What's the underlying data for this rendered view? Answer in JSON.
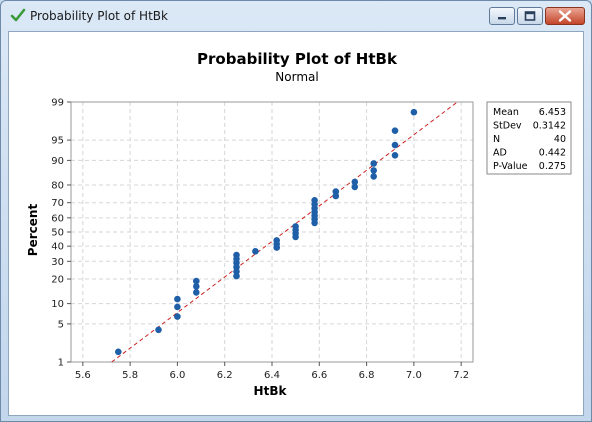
{
  "window": {
    "title": "Probability Plot of HtBk",
    "app_icon": "checkmark-icon",
    "controls": [
      "minimize-icon",
      "maximize-icon",
      "close-icon"
    ]
  },
  "chart_data": {
    "type": "scatter",
    "title": "Probability Plot of HtBk",
    "subtitle": "Normal",
    "xlabel": "HtBk",
    "ylabel": "Percent",
    "xlim": [
      5.55,
      7.25
    ],
    "ylim": [
      1,
      99
    ],
    "y_scale": "normal-probability",
    "x_ticks": [
      "5.6",
      "5.8",
      "6.0",
      "6.2",
      "6.4",
      "6.6",
      "6.8",
      "7.0",
      "7.2"
    ],
    "y_ticks": [
      "1",
      "5",
      "10",
      "20",
      "30",
      "40",
      "50",
      "60",
      "70",
      "80",
      "90",
      "95",
      "99"
    ],
    "grid": true,
    "series": [
      {
        "name": "",
        "color": "#1f5fa8",
        "points": [
          [
            5.75,
            1.6
          ],
          [
            5.92,
            4.0
          ],
          [
            6.0,
            6.5
          ],
          [
            6.0,
            9.0
          ],
          [
            6.0,
            11.5
          ],
          [
            6.08,
            14.0
          ],
          [
            6.08,
            16.5
          ],
          [
            6.08,
            19.0
          ],
          [
            6.25,
            21.5
          ],
          [
            6.25,
            24.0
          ],
          [
            6.25,
            26.5
          ],
          [
            6.25,
            29.0
          ],
          [
            6.25,
            31.5
          ],
          [
            6.25,
            34.0
          ],
          [
            6.33,
            36.5
          ],
          [
            6.42,
            39.0
          ],
          [
            6.42,
            41.5
          ],
          [
            6.42,
            44.0
          ],
          [
            6.5,
            46.5
          ],
          [
            6.5,
            49.0
          ],
          [
            6.5,
            51.5
          ],
          [
            6.5,
            54.0
          ],
          [
            6.58,
            56.5
          ],
          [
            6.58,
            59.0
          ],
          [
            6.58,
            61.5
          ],
          [
            6.58,
            64.0
          ],
          [
            6.58,
            66.5
          ],
          [
            6.58,
            69.0
          ],
          [
            6.58,
            71.5
          ],
          [
            6.67,
            74.0
          ],
          [
            6.67,
            76.5
          ],
          [
            6.75,
            79.0
          ],
          [
            6.75,
            81.5
          ],
          [
            6.83,
            84.0
          ],
          [
            6.83,
            86.5
          ],
          [
            6.83,
            89.0
          ],
          [
            6.92,
            91.5
          ],
          [
            6.92,
            94.0
          ],
          [
            6.92,
            96.5
          ],
          [
            7.0,
            98.4
          ]
        ]
      }
    ],
    "fit_line": {
      "color": "#cc2222",
      "style": "dashed",
      "mean": 6.453,
      "stdev": 0.3142
    },
    "legend_position": "right",
    "stats": [
      {
        "label": "Mean",
        "value": "6.453"
      },
      {
        "label": "StDev",
        "value": "0.3142"
      },
      {
        "label": "N",
        "value": "40"
      },
      {
        "label": "AD",
        "value": "0.442"
      },
      {
        "label": "P-Value",
        "value": "0.275"
      }
    ]
  }
}
